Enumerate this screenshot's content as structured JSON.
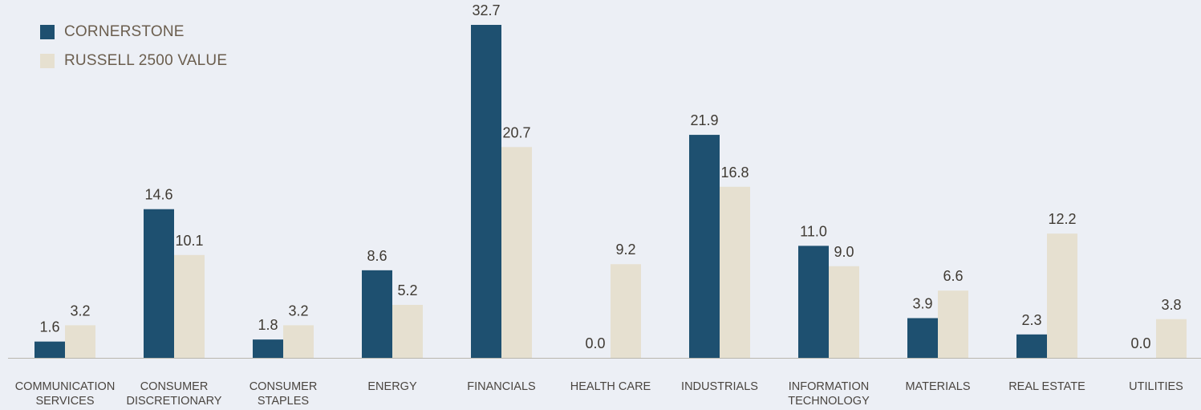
{
  "colors": {
    "cornerstone": "#1e5070",
    "russell": "#e6e0d0",
    "axis": "#b9b6ae",
    "background": "#eceff5"
  },
  "legend": {
    "series1": "CORNERSTONE",
    "series2": "RUSSELL 2500 VALUE"
  },
  "chart_data": {
    "type": "bar",
    "categories": [
      [
        "COMMUNICATION",
        "SERVICES"
      ],
      [
        "CONSUMER",
        "DISCRETIONARY"
      ],
      [
        "CONSUMER",
        "STAPLES"
      ],
      [
        "ENERGY"
      ],
      [
        "FINANCIALS"
      ],
      [
        "HEALTH CARE"
      ],
      [
        "INDUSTRIALS"
      ],
      [
        "INFORMATION",
        "TECHNOLOGY"
      ],
      [
        "MATERIALS"
      ],
      [
        "REAL ESTATE"
      ],
      [
        "UTILITIES"
      ]
    ],
    "series": [
      {
        "name": "CORNERSTONE",
        "values": [
          1.6,
          14.6,
          1.8,
          8.6,
          32.7,
          0.0,
          21.9,
          11.0,
          3.9,
          2.3,
          0.0
        ],
        "labels": [
          "1.6",
          "14.6",
          "1.8",
          "8.6",
          "32.7",
          "0.0",
          "21.9",
          "11.0",
          "3.9",
          "2.3",
          "0.0"
        ]
      },
      {
        "name": "RUSSELL 2500 VALUE",
        "values": [
          3.2,
          10.1,
          3.2,
          5.2,
          20.7,
          9.2,
          16.8,
          9.0,
          6.6,
          12.2,
          3.8
        ],
        "labels": [
          "3.2",
          "10.1",
          "3.2",
          "5.2",
          "20.7",
          "9.2",
          "16.8",
          "9.0",
          "6.6",
          "12.2",
          "3.8"
        ]
      }
    ],
    "ylim": [
      0,
      32.7
    ],
    "grid": false,
    "legend_position": "top-left"
  }
}
